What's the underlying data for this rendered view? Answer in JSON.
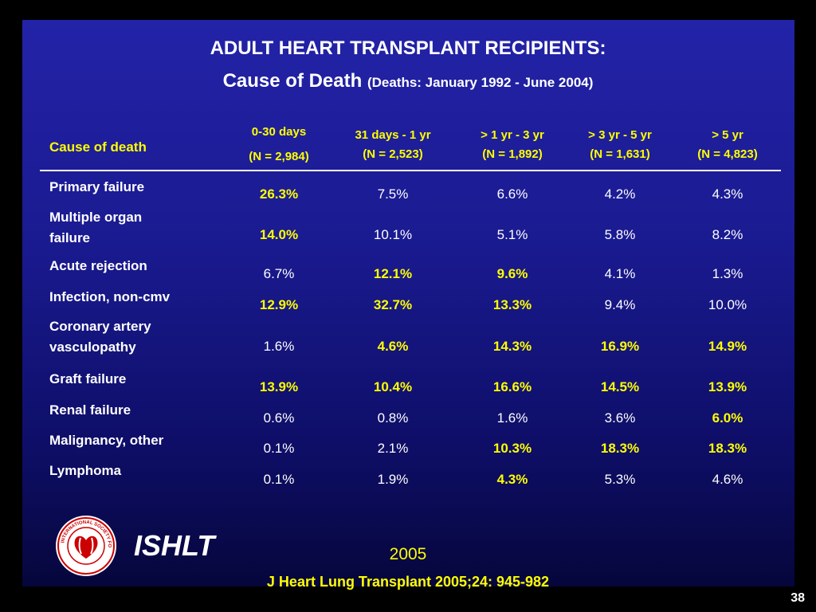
{
  "title": {
    "line1": "ADULT HEART TRANSPLANT RECIPIENTS:",
    "line2_main": "Cause of Death",
    "line2_sub": "(Deaths: January 1992 - June 2004)"
  },
  "table": {
    "first_header": "Cause of death",
    "columns": [
      {
        "line1": "0-30 days",
        "line2": "(N = 2,984)"
      },
      {
        "line1": "31 days - 1 yr",
        "line2": "(N = 2,523)"
      },
      {
        "line1": "> 1 yr - 3 yr",
        "line2": "(N = 1,892)"
      },
      {
        "line1": "> 3 yr - 5 yr",
        "line2": "(N = 1,631)"
      },
      {
        "line1": "> 5 yr",
        "line2": "(N = 4,823)"
      }
    ],
    "rows": [
      {
        "label_lines": [
          "Primary failure"
        ],
        "values": [
          "26.3%",
          "7.5%",
          "6.6%",
          "4.2%",
          "4.3%"
        ],
        "highlight": [
          true,
          false,
          false,
          false,
          false
        ]
      },
      {
        "label_lines": [
          "Multiple organ",
          "failure"
        ],
        "values": [
          "14.0%",
          "10.1%",
          "5.1%",
          "5.8%",
          "8.2%"
        ],
        "highlight": [
          true,
          false,
          false,
          false,
          false
        ]
      },
      {
        "label_lines": [
          "Acute rejection"
        ],
        "values": [
          "6.7%",
          "12.1%",
          "9.6%",
          "4.1%",
          "1.3%"
        ],
        "highlight": [
          false,
          true,
          true,
          false,
          false
        ]
      },
      {
        "label_lines": [
          "Infection, non-cmv"
        ],
        "values": [
          "12.9%",
          "32.7%",
          "13.3%",
          "9.4%",
          "10.0%"
        ],
        "highlight": [
          true,
          true,
          true,
          false,
          false
        ]
      },
      {
        "label_lines": [
          "Coronary artery",
          "vasculopathy"
        ],
        "values": [
          "1.6%",
          "4.6%",
          "14.3%",
          "16.9%",
          "14.9%"
        ],
        "highlight": [
          false,
          true,
          true,
          true,
          true
        ]
      },
      {
        "label_lines": [
          "Graft failure"
        ],
        "values": [
          "13.9%",
          "10.4%",
          "16.6%",
          "14.5%",
          "13.9%"
        ],
        "highlight": [
          true,
          true,
          true,
          true,
          true
        ]
      },
      {
        "label_lines": [
          "Renal failure"
        ],
        "values": [
          "0.6%",
          "0.8%",
          "1.6%",
          "3.6%",
          "6.0%"
        ],
        "highlight": [
          false,
          false,
          false,
          false,
          true
        ]
      },
      {
        "label_lines": [
          "Malignancy, other"
        ],
        "values": [
          "0.1%",
          "2.1%",
          "10.3%",
          "18.3%",
          "18.3%"
        ],
        "highlight": [
          false,
          false,
          true,
          true,
          true
        ]
      },
      {
        "label_lines": [
          "Lymphoma"
        ],
        "values": [
          "0.1%",
          "1.9%",
          "4.3%",
          "5.3%",
          "4.6%"
        ],
        "highlight": [
          false,
          false,
          true,
          false,
          false
        ]
      }
    ]
  },
  "footer": {
    "org": "ISHLT",
    "logo_text": "INTERNATIONAL SOCIETY FOR HEART & LUNG TRANSPLANTATION",
    "year": "2005",
    "citation": "J Heart Lung Transplant 2005;24: 945-982",
    "page_number": "38"
  },
  "colors": {
    "background_top": "#2323a8",
    "background_bottom": "#06063c",
    "highlight": "#ffff00",
    "text": "#ffffff"
  }
}
